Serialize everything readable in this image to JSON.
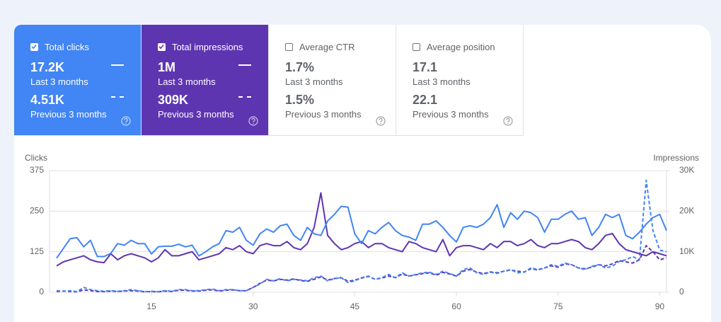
{
  "cards": [
    {
      "title": "Total clicks",
      "checked": true,
      "color": "#4285f4",
      "current": "17.2K",
      "current_label": "Last 3 months",
      "previous": "4.51K",
      "previous_label": "Previous 3 months"
    },
    {
      "title": "Total impressions",
      "checked": true,
      "color": "#5e35b1",
      "current": "1M",
      "current_label": "Last 3 months",
      "previous": "309K",
      "previous_label": "Previous 3 months"
    },
    {
      "title": "Average CTR",
      "checked": false,
      "color": "#ffffff",
      "current": "1.7%",
      "current_label": "Last 3 months",
      "previous": "1.5%",
      "previous_label": "Previous 3 months"
    },
    {
      "title": "Average position",
      "checked": false,
      "color": "#ffffff",
      "current": "17.1",
      "current_label": "Last 3 months",
      "previous": "22.1",
      "previous_label": "Previous 3 months"
    }
  ],
  "chart": {
    "type": "line",
    "ylabel": "Clicks",
    "y2label": "Impressions",
    "ylim": [
      0,
      375
    ],
    "yticks": [
      0,
      125,
      250,
      375
    ],
    "y2lim": [
      0,
      30000
    ],
    "y2ticks": [
      0,
      {
        "value": 10000,
        "label": "10K"
      },
      {
        "value": 20000,
        "label": "20K"
      },
      {
        "value": 30000,
        "label": "30K"
      }
    ],
    "xlim": [
      1,
      91
    ],
    "xticks": [
      15,
      30,
      45,
      60,
      75,
      90
    ],
    "grid": true,
    "series": [
      {
        "color": "#4285f4",
        "dashed": false,
        "values": [
          105,
          135,
          165,
          168,
          140,
          160,
          110,
          110,
          120,
          150,
          145,
          160,
          150,
          150,
          118,
          140,
          142,
          142,
          148,
          140,
          145,
          112,
          125,
          140,
          150,
          190,
          185,
          200,
          160,
          145,
          180,
          195,
          185,
          205,
          210,
          175,
          160,
          200,
          180,
          175,
          220,
          240,
          265,
          262,
          180,
          150,
          190,
          180,
          200,
          215,
          190,
          175,
          170,
          160,
          210,
          210,
          220,
          200,
          175,
          155,
          200,
          205,
          200,
          210,
          230,
          270,
          200,
          245,
          225,
          250,
          245,
          230,
          185,
          225,
          225,
          240,
          250,
          225,
          230,
          175,
          200,
          240,
          230,
          240,
          175,
          165,
          185,
          210,
          230,
          240,
          190
        ]
      },
      {
        "color": "#5e35b1",
        "dashed": false,
        "axis": "y2",
        "values": [
          6500,
          7500,
          8000,
          8500,
          9000,
          8000,
          7500,
          7300,
          9500,
          8000,
          9000,
          9500,
          9000,
          8500,
          7500,
          8500,
          10500,
          9000,
          9000,
          9500,
          10000,
          8000,
          8500,
          9000,
          9500,
          11000,
          10500,
          11500,
          10000,
          9500,
          11500,
          12000,
          11500,
          11500,
          12500,
          11000,
          10500,
          12000,
          16000,
          24500,
          14000,
          12000,
          10500,
          11000,
          12000,
          12500,
          11000,
          12000,
          12000,
          11000,
          10500,
          10000,
          12500,
          12000,
          11000,
          10500,
          10000,
          13000,
          9000,
          11000,
          11500,
          11500,
          11000,
          10500,
          12000,
          11000,
          12500,
          12500,
          11500,
          12000,
          13000,
          11500,
          11000,
          12000,
          12000,
          12500,
          13000,
          12500,
          11000,
          10500,
          12000,
          14000,
          14500,
          12000,
          10500,
          10000,
          9500,
          9000,
          10000,
          9500,
          9000
        ]
      },
      {
        "color": "#4285f4",
        "dashed": true,
        "values": [
          5,
          3,
          5,
          2,
          15,
          8,
          5,
          3,
          5,
          3,
          5,
          8,
          5,
          2,
          3,
          2,
          5,
          3,
          8,
          8,
          5,
          5,
          8,
          10,
          5,
          8,
          8,
          5,
          5,
          15,
          25,
          40,
          35,
          42,
          35,
          40,
          38,
          35,
          45,
          50,
          35,
          42,
          45,
          30,
          35,
          45,
          50,
          40,
          45,
          55,
          45,
          60,
          50,
          55,
          60,
          62,
          55,
          65,
          58,
          50,
          70,
          75,
          60,
          55,
          62,
          58,
          65,
          70,
          60,
          62,
          75,
          70,
          75,
          85,
          80,
          90,
          85,
          75,
          70,
          80,
          85,
          75,
          80,
          95,
          100,
          110,
          100,
          345,
          190,
          130,
          125
        ]
      },
      {
        "color": "#5e35b1",
        "dashed": true,
        "axis": "y2",
        "values": [
          200,
          300,
          200,
          100,
          600,
          400,
          200,
          150,
          300,
          200,
          300,
          400,
          300,
          100,
          200,
          100,
          300,
          200,
          500,
          500,
          300,
          300,
          500,
          600,
          300,
          500,
          600,
          400,
          400,
          1200,
          2200,
          3000,
          2800,
          3200,
          3000,
          3300,
          2900,
          2700,
          3200,
          3800,
          3000,
          3400,
          3600,
          2700,
          3000,
          3500,
          3900,
          3200,
          3500,
          4000,
          3600,
          4500,
          4000,
          4300,
          4600,
          4800,
          4200,
          4900,
          4500,
          4000,
          5200,
          5600,
          5000,
          4600,
          5000,
          4800,
          5200,
          5500,
          5200,
          5000,
          5800,
          5500,
          6000,
          6500,
          6200,
          7000,
          6800,
          6000,
          5800,
          6200,
          6800,
          6500,
          7000,
          7800,
          7500,
          7200,
          8000,
          11500,
          10000,
          8000,
          8500
        ]
      }
    ]
  }
}
